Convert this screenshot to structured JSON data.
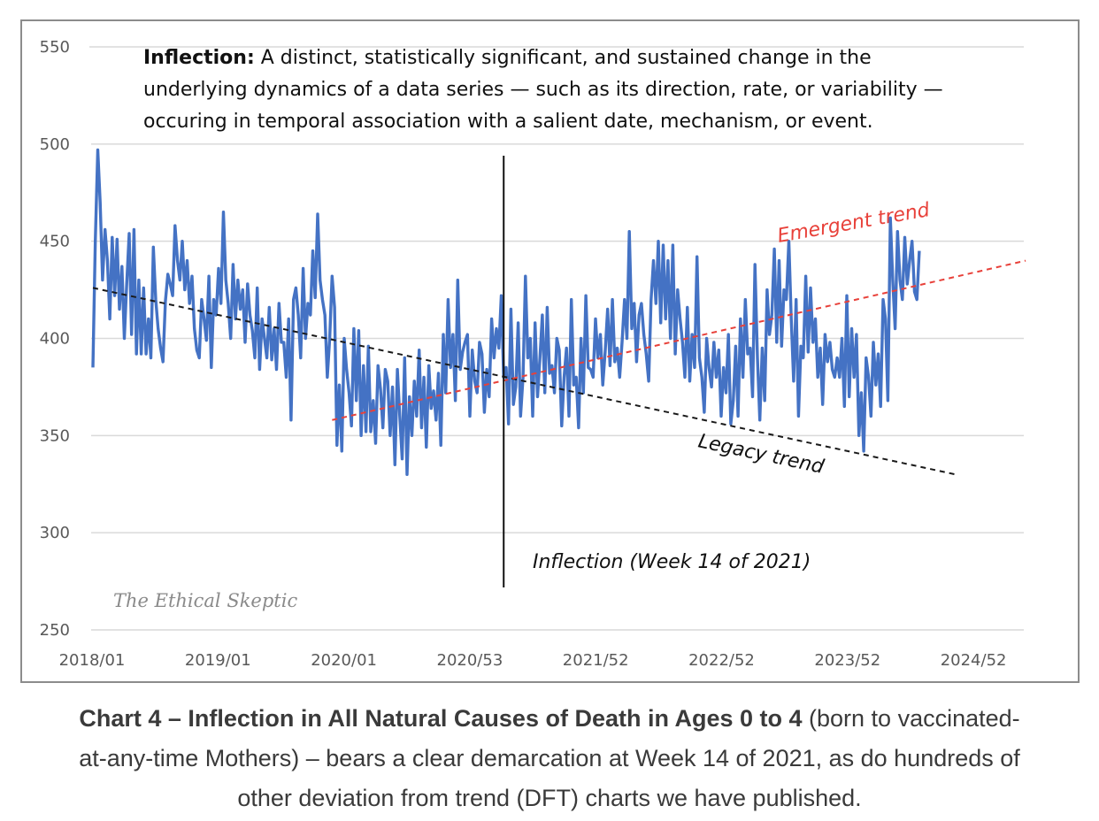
{
  "chart_data": {
    "type": "line",
    "y_ticks": [
      "550",
      "500",
      "450",
      "400",
      "350",
      "300",
      "250"
    ],
    "ylim": [
      250,
      550
    ],
    "x_ticks": [
      "2018/01",
      "2019/01",
      "2020/01",
      "2020/53",
      "2021/52",
      "2022/52",
      "2023/52",
      "2024/52"
    ],
    "grid": true,
    "definition": {
      "term": "Inflection:",
      "lines": [
        " A distinct, statistically significant, and sustained change in the",
        "underlying dynamics of a data series — such as its direction, rate, or variability —",
        "occuring in temporal association with a salient date, mechanism, or event."
      ]
    },
    "annotations": {
      "emergent": "Emergent trend",
      "legacy": "Legacy trend",
      "inflection": "Inflection (Week 14  of 2021)",
      "watermark": "The Ethical Skeptic"
    },
    "trend_lines": [
      {
        "name": "Legacy trend",
        "color": "#1a1a1a",
        "from": {
          "x": 0,
          "y": 426
        },
        "to": {
          "x": 357,
          "y": 330
        }
      },
      {
        "name": "Emergent trend",
        "color": "#e8413a",
        "from": {
          "x": 99,
          "y": 358
        },
        "to": {
          "x": 386,
          "y": 440
        }
      }
    ],
    "inflection_week_index": 170,
    "series": [
      {
        "color": "#4472c4",
        "x_start_week": 0,
        "values": [
          385,
          450,
          497,
          470,
          430,
          456,
          440,
          410,
          452,
          422,
          451,
          415,
          437,
          400,
          428,
          454,
          402,
          456,
          392,
          430,
          392,
          426,
          392,
          410,
          390,
          447,
          420,
          405,
          395,
          388,
          419,
          433,
          428,
          422,
          458,
          440,
          430,
          450,
          425,
          440,
          418,
          432,
          405,
          394,
          390,
          420,
          410,
          399,
          432,
          385,
          420,
          412,
          436,
          418,
          465,
          430,
          418,
          400,
          438,
          410,
          430,
          415,
          425,
          398,
          428,
          412,
          404,
          390,
          426,
          384,
          410,
          400,
          390,
          416,
          389,
          405,
          384,
          418,
          398,
          398,
          380,
          410,
          358,
          420,
          426,
          412,
          390,
          436,
          400,
          418,
          412,
          445,
          421,
          464,
          430,
          420,
          412,
          380,
          400,
          432,
          416,
          345,
          376,
          342,
          400,
          384,
          372,
          355,
          405,
          368,
          404,
          350,
          386,
          352,
          396,
          352,
          368,
          346,
          386,
          374,
          354,
          384,
          378,
          350,
          375,
          335,
          384,
          360,
          338,
          390,
          330,
          370,
          350,
          378,
          360,
          394,
          354,
          380,
          344,
          386,
          364,
          373,
          358,
          382,
          345,
          402,
          372,
          420,
          385,
          402,
          368,
          430,
          384,
          393,
          398,
          402,
          360,
          394,
          378,
          372,
          398,
          392,
          362,
          384,
          370,
          410,
          390,
          405,
          395,
          422,
          380,
          385,
          356,
          415,
          366,
          375,
          408,
          360,
          380,
          432,
          390,
          400,
          360,
          408,
          370,
          390,
          412,
          372,
          416,
          382,
          386,
          372,
          400,
          394,
          355,
          380,
          395,
          360,
          420,
          376,
          380,
          354,
          400,
          372,
          422,
          385,
          384,
          380,
          410,
          390,
          402,
          376,
          393,
          415,
          386,
          420,
          388,
          395,
          380,
          398,
          420,
          400,
          455,
          405,
          418,
          388,
          412,
          418,
          402,
          392,
          378,
          420,
          440,
          418,
          450,
          408,
          448,
          410,
          440,
          400,
          448,
          392,
          425,
          410,
          398,
          380,
          416,
          378,
          402,
          385,
          442,
          390,
          380,
          362,
          400,
          385,
          375,
          398,
          380,
          394,
          360,
          385,
          372,
          402,
          356,
          368,
          396,
          360,
          410,
          380,
          420,
          392,
          395,
          370,
          438,
          390,
          358,
          395,
          368,
          425,
          402,
          412,
          446,
          398,
          440,
          396,
          425,
          420,
          450,
          410,
          378,
          420,
          360,
          396,
          390,
          432,
          393,
          426,
          398,
          410,
          380,
          395,
          366,
          402,
          388,
          398,
          384,
          380,
          390,
          380,
          400,
          365,
          422,
          370,
          405,
          380,
          402,
          350,
          372,
          342,
          390,
          380,
          360,
          398,
          376,
          392,
          365,
          420,
          410,
          368,
          462,
          430,
          405,
          455,
          430,
          420,
          452,
          428,
          440,
          450,
          424,
          420,
          445
        ]
      }
    ]
  },
  "caption": {
    "bold": "Chart 4 – Inflection in All Natural Causes of Death in Ages 0 to 4",
    "rest_line1": " (born to vaccinated-",
    "line2": "at-any-time Mothers) – bears a clear demarcation at Week 14 of 2021, as do hundreds of",
    "line3": "other deviation from trend (DFT) charts we have published."
  }
}
